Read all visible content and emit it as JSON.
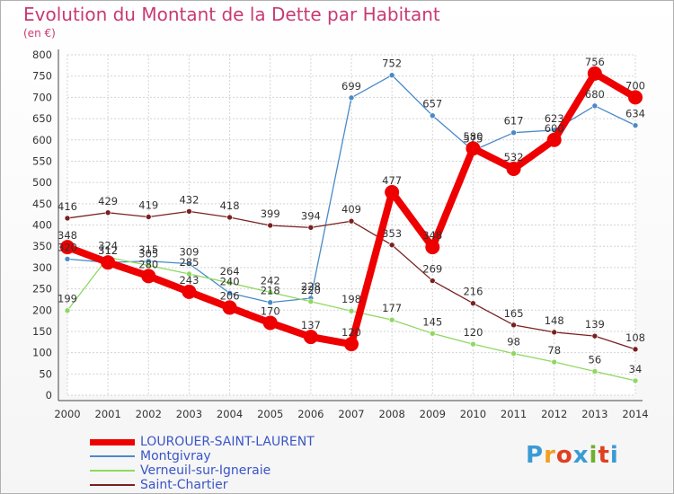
{
  "title": "Evolution du Montant de la Dette par Habitant",
  "unit": "(en €)",
  "logo": {
    "text": "Proxiti",
    "colors": [
      "#3a9bd5",
      "#f0a020",
      "#e04020",
      "#3a9bd5",
      "#70b030",
      "#e04020",
      "#3a9bd5"
    ]
  },
  "chart_data": {
    "type": "line",
    "x": [
      "2000",
      "2001",
      "2002",
      "2003",
      "2004",
      "2005",
      "2006",
      "2007",
      "2008",
      "2009",
      "2010",
      "2011",
      "2012",
      "2013",
      "2014"
    ],
    "ylim": [
      0,
      800
    ],
    "yticks": [
      0,
      50,
      100,
      150,
      200,
      250,
      300,
      350,
      400,
      450,
      500,
      550,
      600,
      650,
      700,
      750,
      800
    ],
    "grid": true,
    "legend_position": "bottom-left",
    "series": [
      {
        "name": "LOUROUER-SAINT-LAURENT",
        "color": "#ee0000",
        "stroke": 8,
        "marker": 8,
        "values": [
          348,
          312,
          280,
          243,
          206,
          170,
          137,
          120,
          477,
          348,
          580,
          532,
          600,
          756,
          700
        ]
      },
      {
        "name": "Montgivray",
        "color": "#4a8ac8",
        "stroke": 1.3,
        "marker": 3,
        "values": [
          320,
          312,
          315,
          309,
          240,
          218,
          228,
          699,
          752,
          657,
          575,
          617,
          623,
          680,
          634
        ]
      },
      {
        "name": "Verneuil-sur-Igneraie",
        "color": "#8ed860",
        "stroke": 1.3,
        "marker": 3,
        "values": [
          199,
          324,
          305,
          285,
          264,
          242,
          220,
          198,
          177,
          145,
          120,
          98,
          78,
          56,
          34
        ]
      },
      {
        "name": "Saint-Chartier",
        "color": "#7a2020",
        "stroke": 1.3,
        "marker": 3,
        "values": [
          416,
          429,
          419,
          432,
          418,
          399,
          394,
          409,
          353,
          269,
          216,
          165,
          148,
          139,
          108
        ]
      }
    ]
  }
}
